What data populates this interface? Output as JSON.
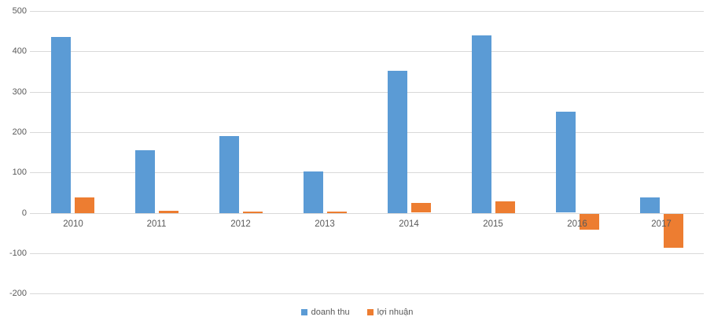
{
  "chart_data": {
    "type": "bar",
    "title": "",
    "categories": [
      "2010",
      "2011",
      "2012",
      "2013",
      "2014",
      "2015",
      "2016",
      "2017"
    ],
    "series": [
      {
        "name": "doanh thu",
        "color": "#5B9BD5",
        "values": [
          435,
          155,
          190,
          103,
          352,
          440,
          250,
          38
        ]
      },
      {
        "name": "lợi nhuận",
        "color": "#ED7D31",
        "values": [
          38,
          6,
          3,
          3,
          24,
          29,
          -38,
          -84
        ]
      }
    ],
    "ylim": [
      -200,
      500
    ],
    "yticks": [
      500,
      400,
      300,
      200,
      100,
      0,
      -100,
      -200
    ],
    "grid": true,
    "legend_position": "bottom-center",
    "xlabel": "",
    "ylabel": ""
  },
  "colors": {
    "grid": "#D9D9D9",
    "axis_text": "#595959",
    "background": "#FFFFFF"
  }
}
